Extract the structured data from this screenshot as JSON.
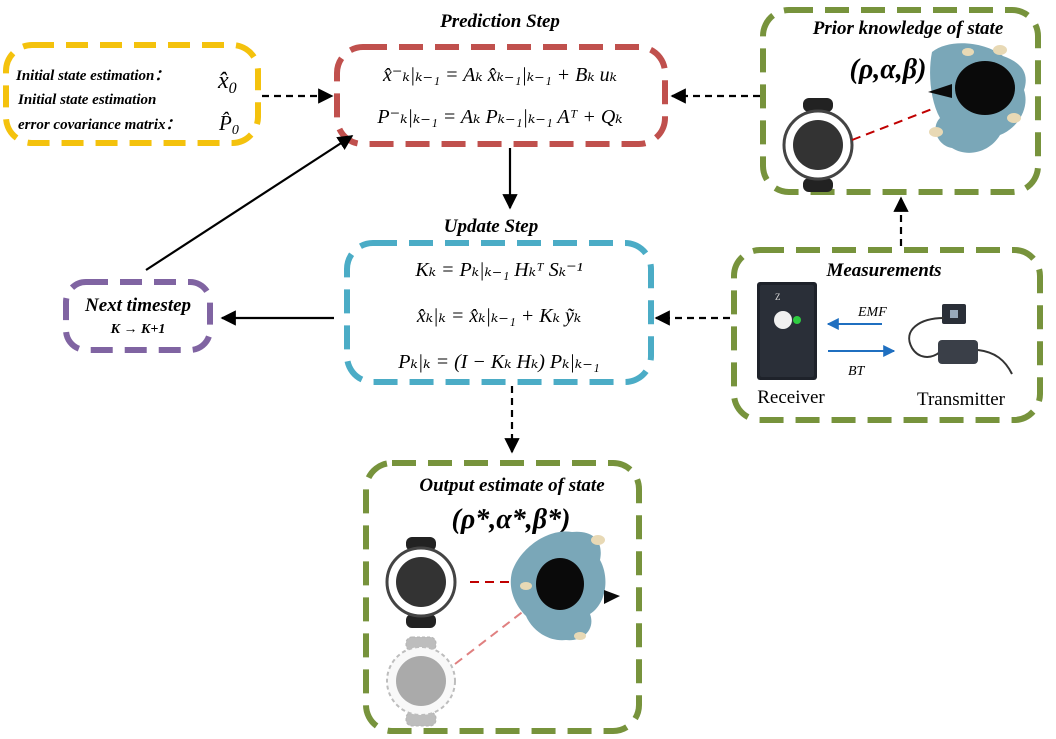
{
  "initial_box": {
    "line1": "Initial state estimation：",
    "sym1": "x̂",
    "sym1_sub": "0",
    "line2": "Initial state estimation",
    "line3": "error covariance matrix：",
    "sym2": "P̂",
    "sym2_sub": "0"
  },
  "prediction": {
    "title": "Prediction Step",
    "eq1": "x̂⁻ₖ|ₖ₋₁ = Aₖ x̂ₖ₋₁|ₖ₋₁ + Bₖ uₖ",
    "eq2": "P⁻ₖ|ₖ₋₁ = Aₖ Pₖ₋₁|ₖ₋₁ Aᵀ + Qₖ"
  },
  "prior": {
    "title": "Prior knowledge of state",
    "state": "(ρ,α,β)"
  },
  "update": {
    "title": "Update Step",
    "eq1": "Kₖ = Pₖ|ₖ₋₁ Hₖᵀ Sₖ⁻¹",
    "eq2": "x̂ₖ|ₖ = x̂ₖ|ₖ₋₁ + Kₖ ỹₖ",
    "eq3": "Pₖ|ₖ = (I − Kₖ Hₖ) Pₖ|ₖ₋₁"
  },
  "next": {
    "title": "Next timestep",
    "sub": "K → K+1"
  },
  "measurements": {
    "title": "Measurements",
    "emf": "EMF",
    "bt": "BT",
    "receiver": "Receiver",
    "transmitter": "Transmitter",
    "device_mark": "Z"
  },
  "output": {
    "title": "Output estimate of state",
    "state": "(ρ*,α*,β*)"
  },
  "colors": {
    "yellow": "#f4c20d",
    "red": "#c0504d",
    "green": "#77933c",
    "cyan": "#4bacc6",
    "purple": "#8064a2",
    "fur": "#7aa7b8",
    "arrow_blue": "#1f6fc0"
  }
}
